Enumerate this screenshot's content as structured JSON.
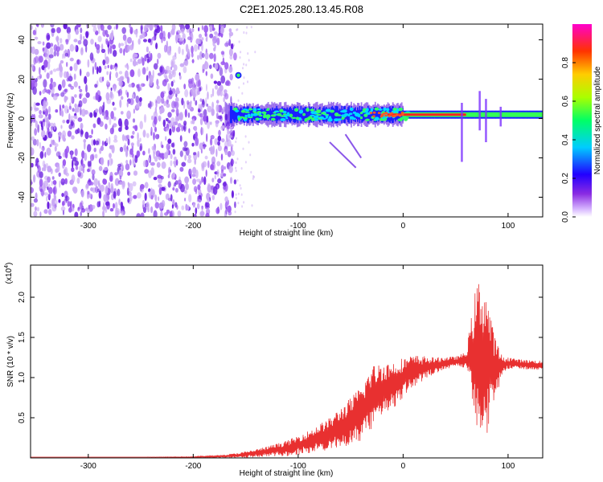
{
  "title": "C2E1.2025.280.13.45.R08",
  "colors": {
    "noise": "#6a1fe0",
    "noise_light": "#c9a8f5",
    "signal_line": "#e83030",
    "frame": "#000000"
  },
  "chart_data": [
    {
      "type": "heatmap",
      "name": "spectrogram",
      "xlabel": "Height of straight line (km)",
      "ylabel": "Frequency (Hz)",
      "xlim": [
        -355,
        133
      ],
      "ylim": [
        -50,
        48
      ],
      "xticks": [
        -300,
        -200,
        -100,
        0,
        100
      ],
      "xtick_labels": [
        "-300",
        "-200",
        "-100",
        "0",
        "100"
      ],
      "yticks": [
        -40,
        -20,
        0,
        20,
        40
      ],
      "ytick_labels": [
        "-40",
        "-20",
        "0",
        "20",
        "40"
      ],
      "noise_region_x": [
        -355,
        -160
      ],
      "signal_band_freq_hz": 2,
      "colorbar": {
        "label": "Normalized spectral amplitude",
        "range": [
          0.0,
          1.0
        ],
        "ticks": [
          0.0,
          0.2,
          0.4,
          0.6,
          0.8
        ],
        "tick_labels": [
          "0.0",
          "0.2",
          "0.4",
          "0.6",
          "0.8"
        ],
        "colors": [
          "#ffffff",
          "#8a2be2",
          "#0000ff",
          "#00ccff",
          "#00ff66",
          "#ccff00",
          "#ffcc00",
          "#ff3300",
          "#ff00cc"
        ]
      }
    },
    {
      "type": "line",
      "name": "snr",
      "xlabel": "Height of straight line (km)",
      "ylabel": "SNR (10 * v/v)",
      "scale_label": "(x10",
      "scale_exponent": "4",
      "scale_suffix": ")",
      "xlim": [
        -355,
        133
      ],
      "ylim": [
        0,
        2.4
      ],
      "xticks": [
        -300,
        -200,
        -100,
        0,
        100
      ],
      "xtick_labels": [
        "-300",
        "-200",
        "-100",
        "0",
        "100"
      ],
      "yticks": [
        0.5,
        1.0,
        1.5,
        2.0
      ],
      "ytick_labels": [
        "0.5",
        "1.0",
        "1.5",
        "2.0"
      ],
      "series": [
        {
          "name": "SNR",
          "x": [
            -355,
            -300,
            -250,
            -200,
            -170,
            -150,
            -130,
            -110,
            -90,
            -70,
            -50,
            -40,
            -30,
            -20,
            -10,
            0,
            10,
            20,
            30,
            40,
            50,
            60,
            65,
            70,
            75,
            80,
            85,
            90,
            95,
            100,
            110,
            120,
            133
          ],
          "y": [
            0.01,
            0.01,
            0.01,
            0.01,
            0.02,
            0.04,
            0.08,
            0.12,
            0.2,
            0.3,
            0.45,
            0.55,
            0.75,
            0.85,
            0.9,
            1.0,
            1.08,
            1.12,
            1.15,
            1.18,
            1.2,
            1.22,
            1.25,
            1.3,
            1.25,
            1.2,
            1.15,
            1.12,
            1.15,
            1.18,
            1.17,
            1.16,
            1.15
          ],
          "envelope_amplitude": [
            0.0,
            0.0,
            0.0,
            0.005,
            0.02,
            0.04,
            0.06,
            0.1,
            0.14,
            0.2,
            0.3,
            0.35,
            0.4,
            0.35,
            0.3,
            0.25,
            0.2,
            0.15,
            0.1,
            0.08,
            0.06,
            0.1,
            0.5,
            0.9,
            1.0,
            0.9,
            0.5,
            0.3,
            0.1,
            0.08,
            0.06,
            0.06,
            0.06
          ]
        }
      ]
    }
  ]
}
